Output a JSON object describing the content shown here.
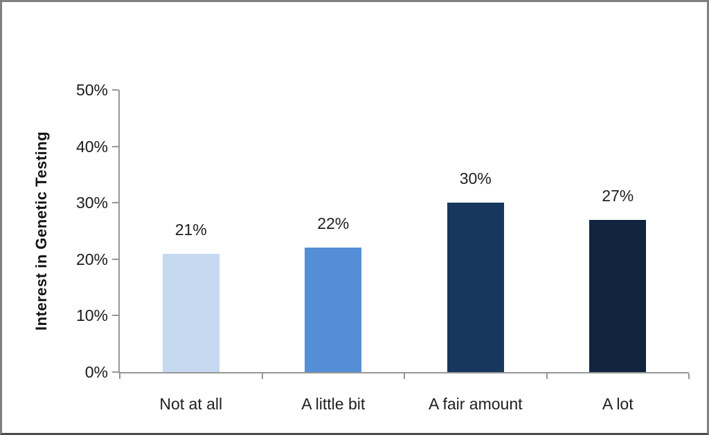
{
  "chart_data": {
    "type": "bar",
    "title": "",
    "xlabel": "",
    "ylabel": "Interest in Genetic Testing",
    "categories": [
      "Not at all",
      "A little bit",
      "A fair amount",
      "A lot"
    ],
    "values": [
      21,
      22,
      30,
      27
    ],
    "value_labels": [
      "21%",
      "22%",
      "30%",
      "27%"
    ],
    "bar_colors": [
      "#C6D9F1",
      "#558ED5",
      "#17375E",
      "#10243E"
    ],
    "ylim": [
      0,
      50
    ],
    "yticks": [
      0,
      10,
      20,
      30,
      40,
      50
    ],
    "ytick_labels": [
      "0%",
      "10%",
      "20%",
      "30%",
      "40%",
      "50%"
    ],
    "grid": false,
    "legend": "none",
    "axis_color": "#969696",
    "text_color": "#1f1f1f",
    "background_color": "#ffffff"
  }
}
